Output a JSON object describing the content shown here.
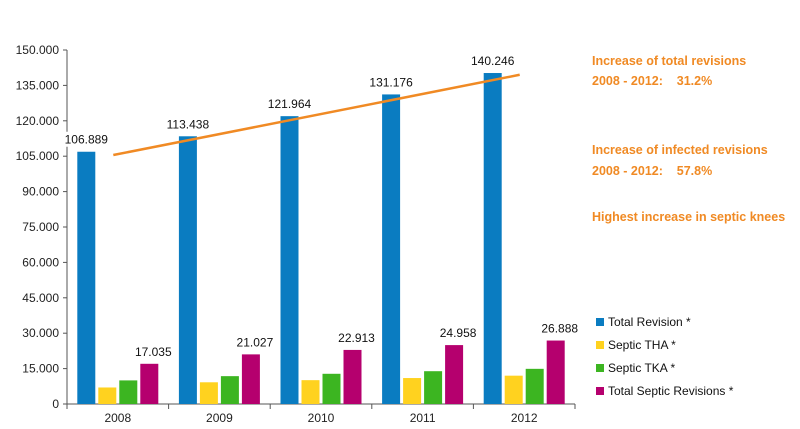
{
  "chart_data": {
    "type": "bar",
    "categories": [
      "2008",
      "2009",
      "2010",
      "2011",
      "2012"
    ],
    "ylim": [
      0,
      150000
    ],
    "yticks": [
      "0",
      "15.000",
      "30.000",
      "45.000",
      "60.000",
      "75.000",
      "90.000",
      "105.000",
      "120.000",
      "135.000",
      "150.000"
    ],
    "series": [
      {
        "name": "Total Revision *",
        "color": "#0a7cc1",
        "values": [
          106889,
          113438,
          121964,
          131176,
          140246
        ],
        "labels": [
          "106.889",
          "113.438",
          "121.964",
          "131.176",
          "140.246"
        ]
      },
      {
        "name": "Septic THA *",
        "color": "#ffd21f",
        "values": [
          7000,
          9200,
          10100,
          11000,
          12000
        ]
      },
      {
        "name": "Septic TKA *",
        "color": "#3cb521",
        "values": [
          10000,
          11800,
          12800,
          13900,
          14900
        ]
      },
      {
        "name": "Total Septic Revisions *",
        "color": "#b5006e",
        "values": [
          17035,
          21027,
          22913,
          24958,
          26888
        ],
        "labels": [
          "17.035",
          "21.027",
          "22.913",
          "24.958",
          "26.888"
        ]
      }
    ],
    "trendline": {
      "color": "#f08a24",
      "from": {
        "category": "2008",
        "value": 105500
      },
      "to": {
        "category": "2012",
        "value": 139500
      }
    },
    "legend_position": "bottom-right"
  },
  "annotations": {
    "total_title": "Increase of total revisions",
    "total_line": "2008 - 2012:    31.2%",
    "infected_title": "Increase of infected revisions",
    "infected_line": "2008 - 2012:    57.8%",
    "septic_knees": "Highest increase in septic knees"
  }
}
